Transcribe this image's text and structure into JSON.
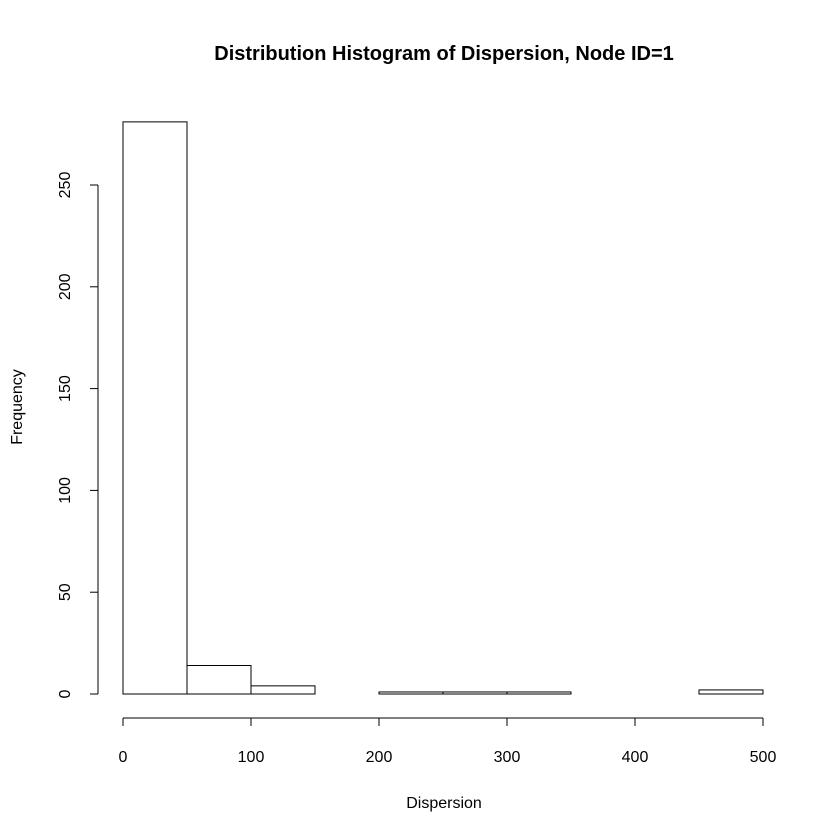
{
  "chart_data": {
    "type": "bar",
    "title": "Distribution Histogram of Dispersion, Node ID=1",
    "xlabel": "Dispersion",
    "ylabel": "Frequency",
    "bins": [
      {
        "x0": 0,
        "x1": 50,
        "count": 281
      },
      {
        "x0": 50,
        "x1": 100,
        "count": 14
      },
      {
        "x0": 100,
        "x1": 150,
        "count": 4
      },
      {
        "x0": 150,
        "x1": 200,
        "count": 0
      },
      {
        "x0": 200,
        "x1": 250,
        "count": 1
      },
      {
        "x0": 250,
        "x1": 300,
        "count": 1
      },
      {
        "x0": 300,
        "x1": 350,
        "count": 1
      },
      {
        "x0": 350,
        "x1": 400,
        "count": 0
      },
      {
        "x0": 400,
        "x1": 450,
        "count": 0
      },
      {
        "x0": 450,
        "x1": 500,
        "count": 2
      }
    ],
    "xlim": [
      0,
      500
    ],
    "ylim": [
      0,
      281
    ],
    "x_ticks": [
      0,
      100,
      200,
      300,
      400,
      500
    ],
    "y_ticks": [
      0,
      50,
      100,
      150,
      200,
      250
    ],
    "grid": false,
    "bar_fill": "#ffffff",
    "bar_stroke": "#000000"
  }
}
